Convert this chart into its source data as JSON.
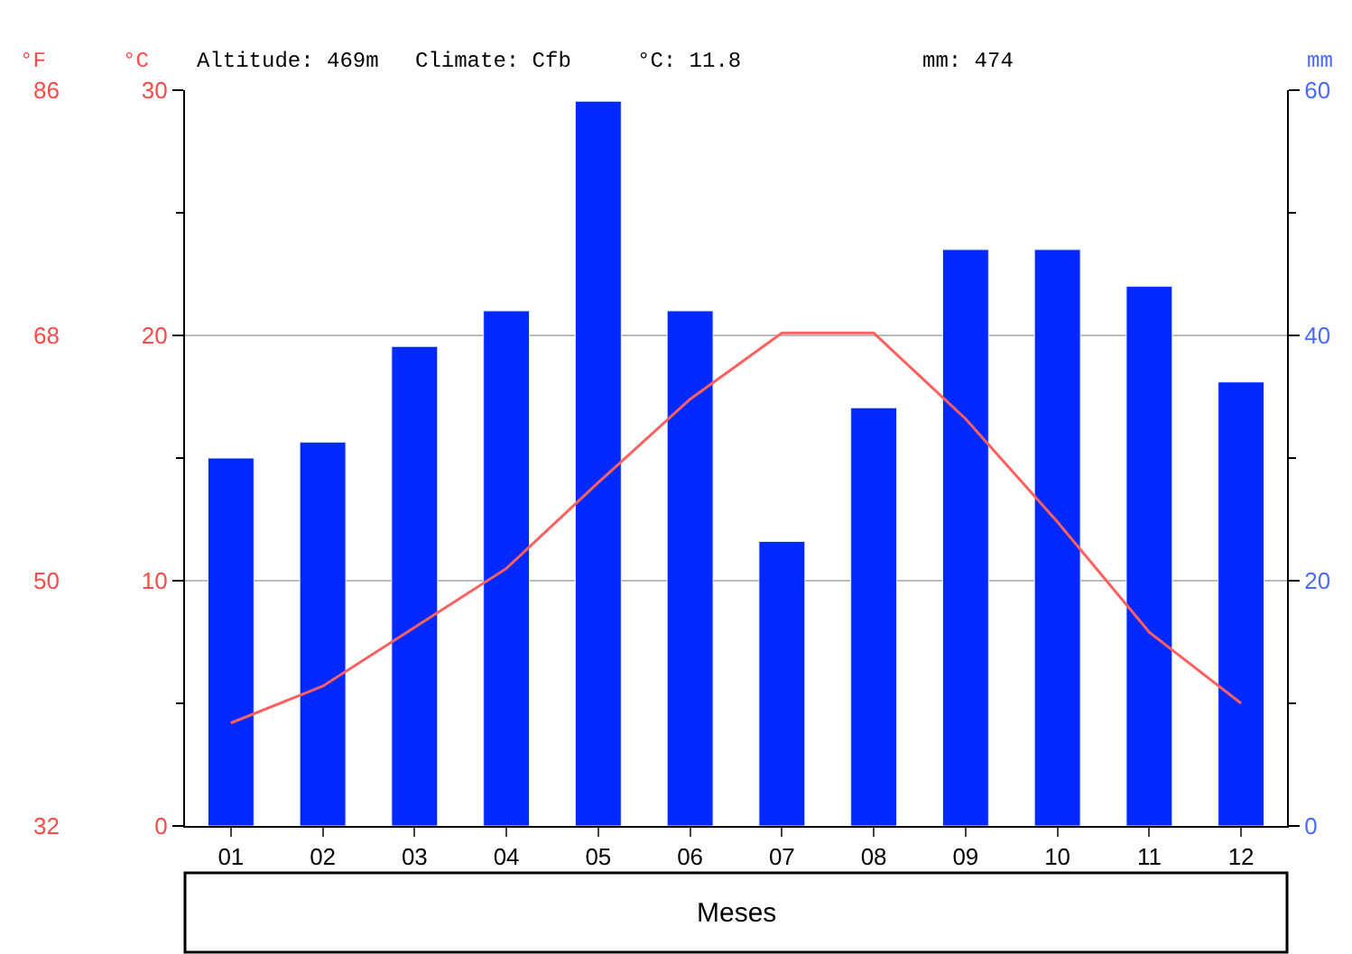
{
  "chart_data": {
    "type": "bar",
    "categories": [
      "01",
      "02",
      "03",
      "04",
      "05",
      "06",
      "07",
      "08",
      "09",
      "10",
      "11",
      "12"
    ],
    "series": [
      {
        "axis": "y2",
        "color": "#0028ff",
        "values": [
          30,
          31.3,
          39.1,
          42,
          59.1,
          42,
          23.2,
          34.1,
          47,
          47,
          44,
          36.2
        ]
      },
      {
        "type": "line",
        "axis": "y",
        "color": "#ff6060",
        "values": [
          4.2,
          5.7,
          8.1,
          10.5,
          14.0,
          17.4,
          20.1,
          20.1,
          16.6,
          12.4,
          7.9,
          5.0
        ]
      }
    ],
    "ylabel": "°C",
    "y2label": "mm",
    "y3label": "°F",
    "xlabel": "Meses",
    "ylim": [
      0,
      30
    ],
    "yticks": [
      0,
      10,
      20,
      30
    ],
    "y2lim": [
      0,
      60
    ],
    "y2ticks": [
      0,
      20,
      40,
      60
    ],
    "y3lim": [
      32,
      86
    ],
    "y3ticks": [
      32,
      50,
      68,
      86
    ],
    "annotations": [
      "Altitude: 469m",
      "Climate: Cfb",
      "°C: 11.8",
      "mm: 474"
    ],
    "grid": "y",
    "marker": "none",
    "line_style": "solid"
  }
}
